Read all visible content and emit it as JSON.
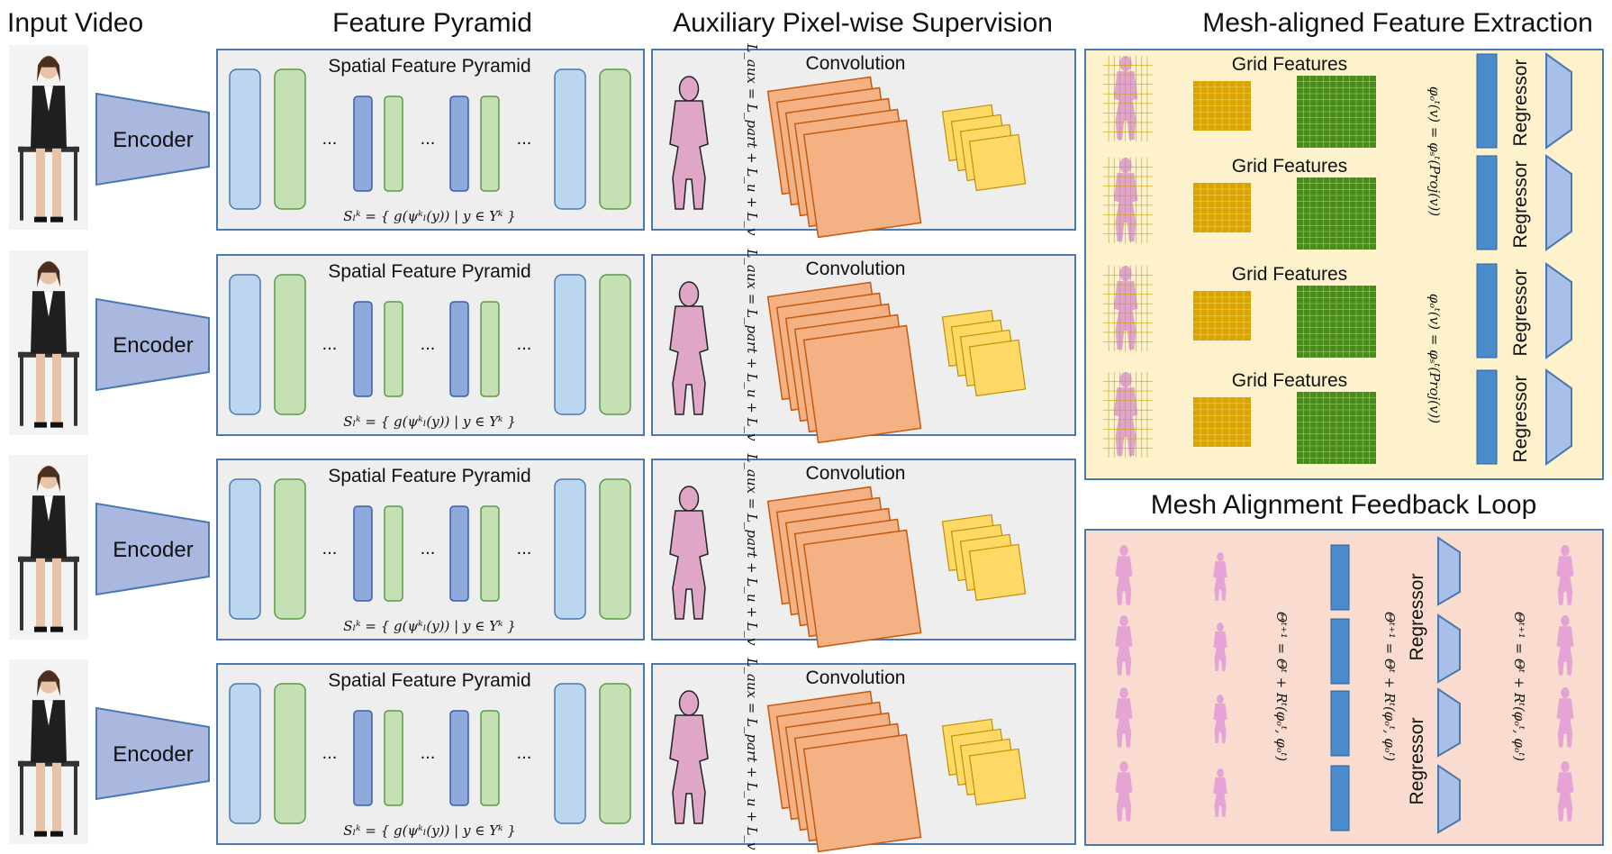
{
  "headers": {
    "input_video": "Input Video",
    "feature_pyramid": "Feature Pyramid",
    "aux_supervision": "Auxiliary Pixel-wise Supervision",
    "mesh_feature_extraction": "Mesh-aligned Feature Extraction",
    "feedback_loop": "Mesh Alignment Feedback Loop"
  },
  "encoder_label": "Encoder",
  "pyramid": {
    "title": "Spatial Feature Pyramid",
    "ellipsis": "...",
    "formula": "Sₗᵏ = { g(ψᵏₗ(y)) | y ∈ Yᵏ }"
  },
  "aux": {
    "title": "Convolution",
    "loss": "L_aux = L_part + L_u + L_v"
  },
  "mesh_extraction": {
    "grid_title": "Grid Features",
    "regressor": "Regressor",
    "formula": "φₒᵗ(v) = φₛᵗ(Proj(v))"
  },
  "feedback": {
    "regressor": "Regressor",
    "update": "Θᵗ⁺¹ = Θᵗ + Rᵗ(φₒᵗ, φₒᵗ)"
  },
  "colors": {
    "panel_border": "#4a78b0",
    "panel_fill": "#eeeeee",
    "encoder_fill": "#aab8e0",
    "blue_block": "#bcd6ef",
    "green_block": "#c5e0b4",
    "dark_blue_block": "#8ea9db",
    "orange_square": "#f4b183",
    "yellow_square": "#ffd966",
    "mesh_panel_fill": "#fdf2cc",
    "feedback_panel_fill": "#f9dccf",
    "grid_gold": "#d9a300",
    "grid_green": "#4a8c1c",
    "bar_blue": "#4a8bcc",
    "silhouette_pink": "#e0a6c8"
  }
}
